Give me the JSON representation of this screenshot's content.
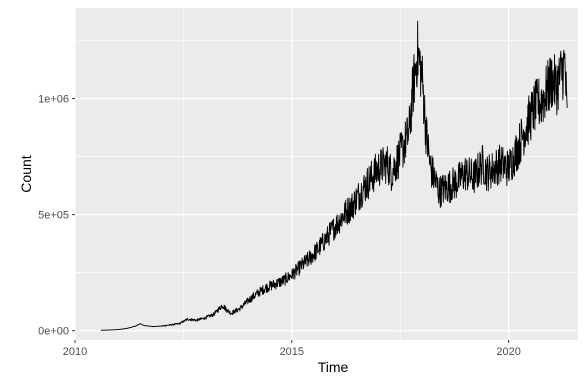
{
  "chart_data": {
    "type": "line",
    "title": "",
    "xlabel": "Time",
    "ylabel": "Count",
    "xlim": [
      2010.0,
      2021.6
    ],
    "ylim": [
      -40000,
      1390000
    ],
    "x_ticks": [
      {
        "value": 2010,
        "label": "2010"
      },
      {
        "value": 2015,
        "label": "2015"
      },
      {
        "value": 2020,
        "label": "2020"
      }
    ],
    "y_ticks": [
      {
        "value": 0,
        "label": "0e+00"
      },
      {
        "value": 500000,
        "label": "5e+05"
      },
      {
        "value": 1000000,
        "label": "1e+06"
      }
    ],
    "grid": true,
    "legend": "none",
    "colors": {
      "panel": "#ebebeb",
      "grid": "#ffffff",
      "line": "#000000"
    },
    "series": [
      {
        "x": [
          2010.6,
          2010.8,
          2011.0,
          2011.2,
          2011.4,
          2011.5,
          2011.6,
          2011.8,
          2012.0,
          2012.2,
          2012.4,
          2012.6,
          2012.8,
          2013.0,
          2013.2,
          2013.4,
          2013.5,
          2013.6,
          2013.8,
          2014.0,
          2014.2,
          2014.4,
          2014.6,
          2014.8,
          2015.0,
          2015.2,
          2015.4,
          2015.6,
          2015.8,
          2016.0,
          2016.2,
          2016.4,
          2016.6,
          2016.8,
          2017.0,
          2017.2,
          2017.3,
          2017.5,
          2017.7,
          2017.8,
          2017.9,
          2018.0,
          2018.1,
          2018.2,
          2018.3,
          2018.4,
          2018.6,
          2018.8,
          2019.0,
          2019.2,
          2019.4,
          2019.5,
          2019.6,
          2019.8,
          2020.0,
          2020.2,
          2020.4,
          2020.6,
          2020.8,
          2021.0,
          2021.1,
          2021.2,
          2021.3,
          2021.35
        ],
        "y": [
          2000,
          3000,
          5000,
          10000,
          20000,
          30000,
          22000,
          18000,
          20000,
          25000,
          30000,
          50000,
          45000,
          55000,
          70000,
          110000,
          90000,
          75000,
          95000,
          130000,
          160000,
          185000,
          200000,
          215000,
          240000,
          275000,
          310000,
          350000,
          400000,
          450000,
          500000,
          540000,
          600000,
          650000,
          700000,
          720000,
          680000,
          760000,
          850000,
          1050000,
          1200000,
          1100000,
          850000,
          700000,
          650000,
          600000,
          620000,
          640000,
          680000,
          660000,
          720000,
          680000,
          690000,
          720000,
          700000,
          780000,
          880000,
          960000,
          1000000,
          1080000,
          1050000,
          1100000,
          1150000,
          900000
        ]
      }
    ]
  }
}
